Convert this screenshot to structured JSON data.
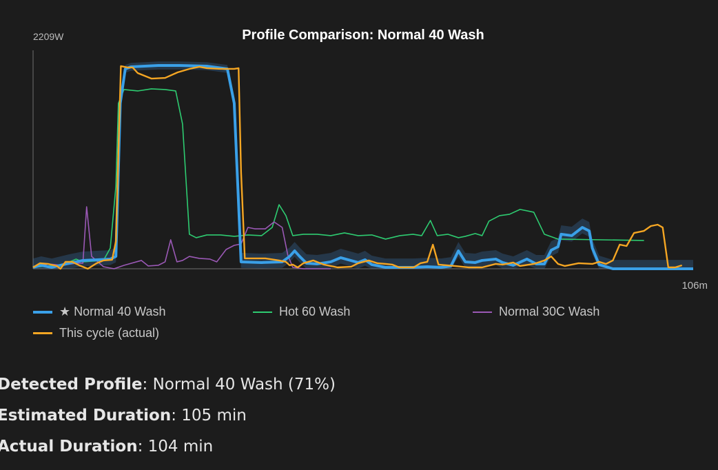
{
  "chart_data": {
    "type": "line",
    "title": "Profile Comparison: Normal 40 Wash",
    "y_max_label": "2209W",
    "x_max_label": "106m",
    "xlim": [
      0,
      106
    ],
    "ylim": [
      0,
      2209
    ],
    "grid": false,
    "legend_position": "bottom",
    "series": [
      {
        "name": "★ Normal 40 Wash",
        "color": "#3aa0e8",
        "band": true,
        "points": [
          [
            0,
            14
          ],
          [
            1.3,
            35
          ],
          [
            3,
            14
          ],
          [
            5.8,
            56
          ],
          [
            8,
            84
          ],
          [
            10.2,
            91
          ],
          [
            12.4,
            98
          ],
          [
            13.3,
            125
          ],
          [
            14,
            1673
          ],
          [
            14.8,
            2021
          ],
          [
            15.7,
            2042
          ],
          [
            17.9,
            2049
          ],
          [
            20.1,
            2056
          ],
          [
            23.5,
            2056
          ],
          [
            27.9,
            2049
          ],
          [
            31.2,
            2021
          ],
          [
            32.3,
            1673
          ],
          [
            33.4,
            70
          ],
          [
            36.7,
            63
          ],
          [
            40,
            70
          ],
          [
            41.2,
            125
          ],
          [
            42,
            181
          ],
          [
            42.8,
            125
          ],
          [
            43.9,
            56
          ],
          [
            45.6,
            49
          ],
          [
            47.8,
            70
          ],
          [
            49.4,
            112
          ],
          [
            50.6,
            91
          ],
          [
            52.2,
            63
          ],
          [
            53.3,
            91
          ],
          [
            54.4,
            42
          ],
          [
            56.6,
            14
          ],
          [
            61,
            14
          ],
          [
            63.3,
            21
          ],
          [
            65.5,
            14
          ],
          [
            67.1,
            28
          ],
          [
            68.3,
            181
          ],
          [
            69.4,
            70
          ],
          [
            71,
            63
          ],
          [
            72.1,
            84
          ],
          [
            74.3,
            98
          ],
          [
            75.4,
            63
          ],
          [
            77.1,
            35
          ],
          [
            79.3,
            98
          ],
          [
            80.8,
            49
          ],
          [
            82.1,
            49
          ],
          [
            83.2,
            188
          ],
          [
            84.3,
            223
          ],
          [
            84.8,
            349
          ],
          [
            86.5,
            335
          ],
          [
            88.2,
            418
          ],
          [
            89.3,
            383
          ],
          [
            89.8,
            209
          ],
          [
            90.9,
            42
          ],
          [
            93.1,
            0
          ],
          [
            106,
            0
          ]
        ]
      },
      {
        "name": "Hot 60 Wash",
        "color": "#2ecc71",
        "points": [
          [
            0,
            14
          ],
          [
            2.4,
            28
          ],
          [
            4.6,
            35
          ],
          [
            6.9,
            98
          ],
          [
            8,
            70
          ],
          [
            11.3,
            84
          ],
          [
            12.4,
            209
          ],
          [
            13.3,
            836
          ],
          [
            13.7,
            1673
          ],
          [
            14.6,
            1812
          ],
          [
            16.8,
            1798
          ],
          [
            19,
            1819
          ],
          [
            21.2,
            1812
          ],
          [
            22.9,
            1798
          ],
          [
            24,
            1464
          ],
          [
            25.1,
            349
          ],
          [
            26.2,
            314
          ],
          [
            27.9,
            342
          ],
          [
            30.1,
            342
          ],
          [
            32.3,
            328
          ],
          [
            34.5,
            342
          ],
          [
            36.7,
            335
          ],
          [
            38.4,
            418
          ],
          [
            39.5,
            648
          ],
          [
            40.6,
            537
          ],
          [
            41.7,
            335
          ],
          [
            43.4,
            349
          ],
          [
            45.6,
            349
          ],
          [
            47.8,
            335
          ],
          [
            50,
            363
          ],
          [
            52.2,
            335
          ],
          [
            54.4,
            342
          ],
          [
            56.6,
            300
          ],
          [
            58.9,
            335
          ],
          [
            61,
            349
          ],
          [
            62.4,
            335
          ],
          [
            63.8,
            488
          ],
          [
            64.9,
            335
          ],
          [
            66.6,
            349
          ],
          [
            68.3,
            314
          ],
          [
            69.4,
            328
          ],
          [
            71,
            356
          ],
          [
            72.1,
            335
          ],
          [
            73.2,
            481
          ],
          [
            74.9,
            537
          ],
          [
            76.5,
            551
          ],
          [
            78.2,
            600
          ],
          [
            80.4,
            572
          ],
          [
            82.1,
            349
          ],
          [
            84.3,
            300
          ],
          [
            98.1,
            286
          ]
        ]
      },
      {
        "name": "Normal 30C Wash",
        "color": "#9b59b6",
        "points": [
          [
            0,
            14
          ],
          [
            2.4,
            49
          ],
          [
            4.6,
            35
          ],
          [
            6.9,
            56
          ],
          [
            8,
            56
          ],
          [
            8.6,
            627
          ],
          [
            9.4,
            125
          ],
          [
            11.3,
            21
          ],
          [
            13,
            0
          ],
          [
            14.6,
            35
          ],
          [
            17.4,
            84
          ],
          [
            18.5,
            28
          ],
          [
            20.1,
            35
          ],
          [
            21.2,
            70
          ],
          [
            22.1,
            293
          ],
          [
            23.1,
            70
          ],
          [
            24,
            84
          ],
          [
            25.1,
            125
          ],
          [
            26.7,
            105
          ],
          [
            28.4,
            98
          ],
          [
            29.5,
            70
          ],
          [
            31,
            195
          ],
          [
            32.3,
            237
          ],
          [
            33.4,
            251
          ],
          [
            34.5,
            418
          ],
          [
            35.6,
            404
          ],
          [
            37.3,
            404
          ],
          [
            38.7,
            474
          ],
          [
            40,
            418
          ],
          [
            40.9,
            139
          ],
          [
            41.7,
            14
          ],
          [
            43.4,
            0
          ],
          [
            47.8,
            0
          ]
        ]
      },
      {
        "name": "This cycle (actual)",
        "color": "#f5a623",
        "points": [
          [
            0,
            14
          ],
          [
            1.1,
            56
          ],
          [
            2.4,
            49
          ],
          [
            3.8,
            28
          ],
          [
            4.4,
            0
          ],
          [
            5.2,
            70
          ],
          [
            6.3,
            70
          ],
          [
            7.4,
            35
          ],
          [
            8.8,
            0
          ],
          [
            10.2,
            56
          ],
          [
            11.3,
            84
          ],
          [
            12.7,
            91
          ],
          [
            13.3,
            279
          ],
          [
            14.1,
            2049
          ],
          [
            15.2,
            2035
          ],
          [
            16,
            2035
          ],
          [
            16.8,
            1979
          ],
          [
            19,
            1923
          ],
          [
            21.2,
            1930
          ],
          [
            23.2,
            1986
          ],
          [
            25.1,
            2021
          ],
          [
            26.7,
            2042
          ],
          [
            27.9,
            2028
          ],
          [
            30.1,
            2021
          ],
          [
            32.3,
            2021
          ],
          [
            33,
            2028
          ],
          [
            33.4,
            976
          ],
          [
            34,
            105
          ],
          [
            37.3,
            105
          ],
          [
            39.5,
            84
          ],
          [
            40.6,
            70
          ],
          [
            41.2,
            35
          ],
          [
            41.7,
            42
          ],
          [
            42.5,
            14
          ],
          [
            43.4,
            56
          ],
          [
            45,
            84
          ],
          [
            46.7,
            42
          ],
          [
            48.9,
            14
          ],
          [
            51.1,
            21
          ],
          [
            52.2,
            56
          ],
          [
            53.9,
            84
          ],
          [
            55.3,
            56
          ],
          [
            56.6,
            49
          ],
          [
            57.7,
            42
          ],
          [
            58.8,
            14
          ],
          [
            61.1,
            14
          ],
          [
            62.2,
            56
          ],
          [
            63.3,
            70
          ],
          [
            64.2,
            244
          ],
          [
            65.1,
            42
          ],
          [
            67.7,
            28
          ],
          [
            69.9,
            14
          ],
          [
            72.1,
            14
          ],
          [
            74.3,
            49
          ],
          [
            75.4,
            42
          ],
          [
            77.1,
            63
          ],
          [
            78.2,
            28
          ],
          [
            80.4,
            49
          ],
          [
            82.1,
            84
          ],
          [
            83.2,
            125
          ],
          [
            84.3,
            49
          ],
          [
            85.4,
            28
          ],
          [
            87.6,
            56
          ],
          [
            89.8,
            49
          ],
          [
            90.9,
            70
          ],
          [
            92,
            49
          ],
          [
            93.1,
            84
          ],
          [
            94.2,
            244
          ],
          [
            95.3,
            230
          ],
          [
            96.5,
            362
          ],
          [
            98.1,
            383
          ],
          [
            99.2,
            432
          ],
          [
            100.3,
            446
          ],
          [
            101.1,
            418
          ],
          [
            102,
            14
          ],
          [
            103.1,
            14
          ],
          [
            104.2,
            35
          ]
        ]
      }
    ]
  },
  "legend": [
    {
      "label": "★ Normal 40 Wash",
      "color": "#3aa0e8"
    },
    {
      "label": "Hot 60 Wash",
      "color": "#2ecc71"
    },
    {
      "label": "Normal 30C Wash",
      "color": "#9b59b6"
    },
    {
      "label": "This cycle (actual)",
      "color": "#f5a623"
    }
  ],
  "summary": {
    "detected_label": "Detected Profile",
    "detected_value": ": Normal 40 Wash (71%)",
    "estimated_label": "Estimated Duration",
    "estimated_value": ": 105 min",
    "actual_label": "Actual Duration",
    "actual_value": ": 104 min"
  }
}
